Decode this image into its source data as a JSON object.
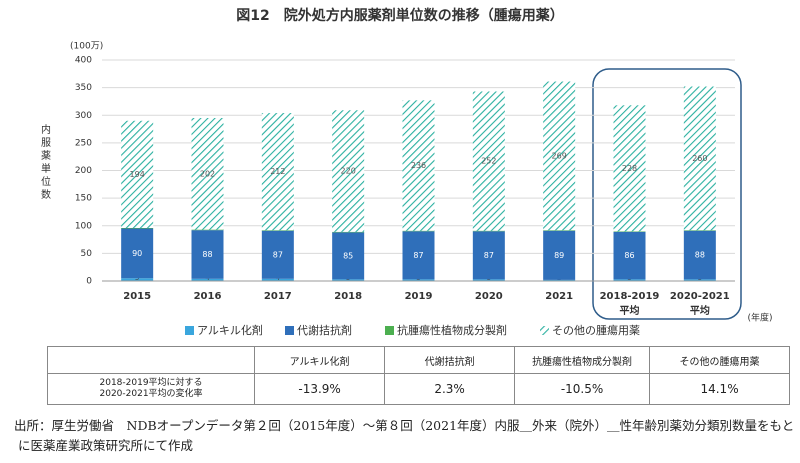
{
  "chart_data": {
    "type": "stacked-bar",
    "title": "図12　院外処方内服薬剤単位数の推移（腫瘍用薬）",
    "y_unit": "(100万)",
    "y_label": "内服薬単位数",
    "x_unit": "(年度)",
    "categories": [
      "2015",
      "2016",
      "2017",
      "2018",
      "2019",
      "2020",
      "2021",
      "2018-2019 平均",
      "2020-2021 平均"
    ],
    "series": [
      {
        "name": "アルキル化剤",
        "color": "#3aa6dd",
        "values": [
          5,
          4,
          4,
          3,
          3,
          3,
          2,
          3,
          3
        ]
      },
      {
        "name": "代謝拮抗剤",
        "color": "#2f6fba",
        "values": [
          90,
          88,
          87,
          85,
          87,
          87,
          89,
          86,
          88
        ]
      },
      {
        "name": "抗腫瘍性植物成分製剤",
        "color": "#4caf50",
        "values": [
          1,
          1,
          1,
          1,
          1,
          1,
          1,
          1,
          1
        ]
      },
      {
        "name": "その他の腫瘍用薬",
        "color": "#2ab0a0",
        "pattern": "diagonal-hatch",
        "values": [
          194,
          202,
          212,
          220,
          236,
          252,
          269,
          228,
          260
        ]
      }
    ],
    "ylim": [
      0,
      400
    ],
    "yticks": [
      0,
      50,
      100,
      150,
      200,
      250,
      300,
      350,
      400
    ],
    "grid": true
  },
  "table": {
    "header": [
      "",
      "アルキル化剤",
      "代謝拮抗剤",
      "抗腫瘍性植物成分製剤",
      "その他の腫瘍用薬"
    ],
    "rows": [
      [
        "2018-2019平均に対する\n2020-2021平均の変化率",
        "-13.9%",
        "2.3%",
        "-10.5%",
        "14.1%"
      ]
    ]
  },
  "source": "出所：厚生労働省　NDBオープンデータ第２回（2015年度）～第８回（2021年度）内服＿外来（院外）＿性年齢別薬効分類別数量をもとに医薬産業政策研究所にて作成"
}
